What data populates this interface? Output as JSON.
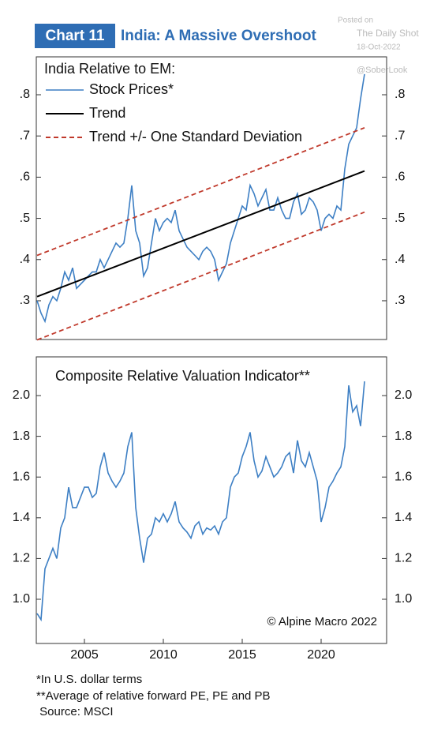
{
  "header": {
    "tag": "Chart 11",
    "title": "India: A Massive Overshoot"
  },
  "watermark": {
    "posted": "Posted on",
    "source": "The Daily Shot",
    "date": "18-Oct-2022",
    "handle": "@SoberLook"
  },
  "chart_data": [
    {
      "type": "line",
      "legend_title": "India Relative to EM:",
      "legend": "upper-left",
      "x": [
        2002,
        2002.25,
        2002.5,
        2002.75,
        2003,
        2003.25,
        2003.5,
        2003.75,
        2004,
        2004.25,
        2004.5,
        2004.75,
        2005,
        2005.25,
        2005.5,
        2005.75,
        2006,
        2006.25,
        2006.5,
        2006.75,
        2007,
        2007.25,
        2007.5,
        2007.75,
        2008,
        2008.25,
        2008.5,
        2008.75,
        2009,
        2009.25,
        2009.5,
        2009.75,
        2010,
        2010.25,
        2010.5,
        2010.75,
        2011,
        2011.25,
        2011.5,
        2011.75,
        2012,
        2012.25,
        2012.5,
        2012.75,
        2013,
        2013.25,
        2013.5,
        2013.75,
        2014,
        2014.25,
        2014.5,
        2014.75,
        2015,
        2015.25,
        2015.5,
        2015.75,
        2016,
        2016.25,
        2016.5,
        2016.75,
        2017,
        2017.25,
        2017.5,
        2017.75,
        2018,
        2018.25,
        2018.5,
        2018.75,
        2019,
        2019.25,
        2019.5,
        2019.75,
        2020,
        2020.25,
        2020.5,
        2020.75,
        2021,
        2021.25,
        2021.5,
        2021.75,
        2022,
        2022.25,
        2022.5,
        2022.75
      ],
      "series": [
        {
          "name": "Stock Prices*",
          "color": "#3d7fc4",
          "values": [
            0.3,
            0.27,
            0.25,
            0.29,
            0.31,
            0.3,
            0.33,
            0.37,
            0.35,
            0.38,
            0.33,
            0.34,
            0.35,
            0.36,
            0.37,
            0.37,
            0.4,
            0.38,
            0.4,
            0.42,
            0.44,
            0.43,
            0.44,
            0.5,
            0.58,
            0.47,
            0.44,
            0.36,
            0.38,
            0.44,
            0.5,
            0.47,
            0.49,
            0.5,
            0.49,
            0.52,
            0.47,
            0.45,
            0.43,
            0.42,
            0.41,
            0.4,
            0.42,
            0.43,
            0.42,
            0.4,
            0.35,
            0.37,
            0.39,
            0.44,
            0.47,
            0.5,
            0.53,
            0.52,
            0.58,
            0.56,
            0.53,
            0.55,
            0.57,
            0.52,
            0.52,
            0.55,
            0.52,
            0.5,
            0.5,
            0.54,
            0.56,
            0.51,
            0.52,
            0.55,
            0.54,
            0.52,
            0.47,
            0.5,
            0.51,
            0.5,
            0.53,
            0.52,
            0.62,
            0.68,
            0.7,
            0.72,
            0.79,
            0.85
          ]
        },
        {
          "name": "Trend",
          "color": "#000000",
          "x": [
            2002,
            2022.75
          ],
          "values": [
            0.31,
            0.615
          ]
        },
        {
          "name": "Trend +/- One Standard Deviation",
          "color": "#c0392b",
          "dash": true,
          "x": [
            2002,
            2022.75
          ],
          "upper": [
            0.41,
            0.72
          ],
          "lower": [
            0.205,
            0.515
          ]
        }
      ],
      "xlim": [
        2001.95,
        2024.15
      ],
      "ylim": [
        0.206,
        0.892
      ],
      "yticks": [
        {
          "value": 0.3,
          "label": ".3"
        },
        {
          "value": 0.4,
          "label": ".4"
        },
        {
          "value": 0.5,
          "label": ".5"
        },
        {
          "value": 0.6,
          "label": ".6"
        },
        {
          "value": 0.7,
          "label": ".7"
        },
        {
          "value": 0.8,
          "label": ".8"
        }
      ]
    },
    {
      "type": "line",
      "title": "Composite Relative Valuation Indicator**",
      "annotation": "© Alpine Macro 2022",
      "x": [
        2002,
        2002.25,
        2002.5,
        2002.75,
        2003,
        2003.25,
        2003.5,
        2003.75,
        2004,
        2004.25,
        2004.5,
        2004.75,
        2005,
        2005.25,
        2005.5,
        2005.75,
        2006,
        2006.25,
        2006.5,
        2006.75,
        2007,
        2007.25,
        2007.5,
        2007.75,
        2008,
        2008.25,
        2008.5,
        2008.75,
        2009,
        2009.25,
        2009.5,
        2009.75,
        2010,
        2010.25,
        2010.5,
        2010.75,
        2011,
        2011.25,
        2011.5,
        2011.75,
        2012,
        2012.25,
        2012.5,
        2012.75,
        2013,
        2013.25,
        2013.5,
        2013.75,
        2014,
        2014.25,
        2014.5,
        2014.75,
        2015,
        2015.25,
        2015.5,
        2015.75,
        2016,
        2016.25,
        2016.5,
        2016.75,
        2017,
        2017.25,
        2017.5,
        2017.75,
        2018,
        2018.25,
        2018.5,
        2018.75,
        2019,
        2019.25,
        2019.5,
        2019.75,
        2020,
        2020.25,
        2020.5,
        2020.75,
        2021,
        2021.25,
        2021.5,
        2021.75,
        2022,
        2022.25,
        2022.5,
        2022.75
      ],
      "series": [
        {
          "color": "#3d7fc4",
          "values": [
            0.93,
            0.9,
            1.15,
            1.2,
            1.25,
            1.2,
            1.35,
            1.4,
            1.55,
            1.45,
            1.45,
            1.5,
            1.55,
            1.55,
            1.5,
            1.52,
            1.65,
            1.72,
            1.62,
            1.58,
            1.55,
            1.58,
            1.62,
            1.75,
            1.82,
            1.45,
            1.3,
            1.18,
            1.3,
            1.32,
            1.4,
            1.38,
            1.42,
            1.38,
            1.42,
            1.48,
            1.38,
            1.35,
            1.33,
            1.3,
            1.36,
            1.38,
            1.32,
            1.35,
            1.34,
            1.36,
            1.32,
            1.38,
            1.4,
            1.55,
            1.6,
            1.62,
            1.7,
            1.75,
            1.82,
            1.68,
            1.6,
            1.63,
            1.7,
            1.65,
            1.6,
            1.62,
            1.65,
            1.7,
            1.72,
            1.62,
            1.78,
            1.68,
            1.65,
            1.72,
            1.65,
            1.58,
            1.38,
            1.45,
            1.55,
            1.58,
            1.62,
            1.65,
            1.75,
            2.05,
            1.92,
            1.95,
            1.85,
            2.07
          ]
        }
      ],
      "xlim": [
        2001.95,
        2024.15
      ],
      "ylim": [
        0.783,
        2.19
      ],
      "xticks": [
        2005,
        2010,
        2015,
        2020
      ],
      "yticks": [
        {
          "value": 1.0,
          "label": "1.0"
        },
        1.2,
        1.4,
        1.6,
        1.8,
        {
          "value": 2.0,
          "label": "2.0"
        }
      ]
    }
  ],
  "footnotes": [
    "*In U.S. dollar terms",
    "**Average of relative forward PE, PE and PB",
    " Source: MSCI"
  ]
}
